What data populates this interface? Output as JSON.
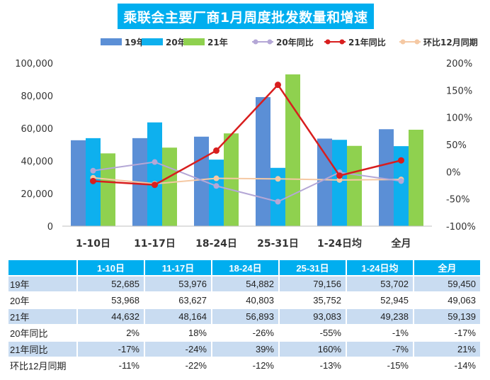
{
  "title": "乘联会主要厂商1月周度批发数量和增速",
  "chart_data": {
    "type": "bar",
    "categories": [
      "1-10日",
      "11-17日",
      "18-24日",
      "25-31日",
      "1-24日均",
      "全月"
    ],
    "bar_series": [
      {
        "name": "19年",
        "color": "#5b8fd6",
        "values": [
          52685,
          53976,
          54882,
          79156,
          53702,
          59450
        ]
      },
      {
        "name": "20年",
        "color": "#0eb0ee",
        "values": [
          53968,
          63627,
          40803,
          35752,
          52945,
          49063
        ]
      },
      {
        "name": "21年",
        "color": "#8fd14f",
        "values": [
          44632,
          48164,
          56893,
          93083,
          49238,
          59139
        ]
      }
    ],
    "line_series": [
      {
        "name": "20年同比",
        "color": "#b4a7d6",
        "values": [
          2,
          18,
          -26,
          -55,
          -1,
          -17
        ]
      },
      {
        "name": "21年同比",
        "color": "#d81e1e",
        "values": [
          -17,
          -24,
          39,
          160,
          -7,
          21
        ]
      },
      {
        "name": "环比12月同期",
        "color": "#f5c9a4",
        "values": [
          -11,
          -22,
          -12,
          -13,
          -15,
          -14
        ]
      }
    ],
    "y_left": {
      "range": [
        0,
        100000
      ],
      "ticks": [
        "0",
        "20,000",
        "40,000",
        "60,000",
        "80,000",
        "100,000"
      ]
    },
    "y_right": {
      "range": [
        -100,
        200
      ],
      "ticks": [
        "-100%",
        "-50%",
        "0%",
        "50%",
        "100%",
        "150%",
        "200%"
      ]
    },
    "legend_position": "top",
    "grid": false
  },
  "table": {
    "headers": [
      "",
      "1-10日",
      "11-17日",
      "18-24日",
      "25-31日",
      "1-24日均",
      "全月"
    ],
    "rows": [
      [
        "19年",
        "52,685",
        "53,976",
        "54,882",
        "79,156",
        "53,702",
        "59,450"
      ],
      [
        "20年",
        "53,968",
        "63,627",
        "40,803",
        "35,752",
        "52,945",
        "49,063"
      ],
      [
        "21年",
        "44,632",
        "48,164",
        "56,893",
        "93,083",
        "49,238",
        "59,139"
      ],
      [
        "20年同比",
        "2%",
        "18%",
        "-26%",
        "-55%",
        "-1%",
        "-17%"
      ],
      [
        "21年同比",
        "-17%",
        "-24%",
        "39%",
        "160%",
        "-7%",
        "21%"
      ],
      [
        "环比12月同期",
        "-11%",
        "-22%",
        "-12%",
        "-13%",
        "-15%",
        "-14%"
      ]
    ]
  }
}
